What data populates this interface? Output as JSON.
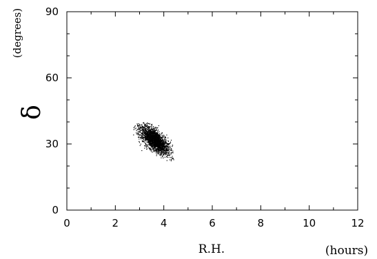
{
  "chart_data": {
    "type": "scatter",
    "xlabel": "R.H.",
    "xunit": "(hours)",
    "ylabel": "δ",
    "yunit": "(degrees)",
    "xlim": [
      0,
      12
    ],
    "ylim": [
      0,
      90
    ],
    "xticks": [
      "0",
      "2",
      "4",
      "6",
      "8",
      "10",
      "12"
    ],
    "yticks": [
      "0",
      "30",
      "60",
      "90"
    ],
    "grid": false,
    "point_color": "#000000",
    "cluster": {
      "center": [
        3.6,
        32
      ],
      "x_extent": [
        2.7,
        4.4
      ],
      "y_extent": [
        22,
        40
      ]
    }
  }
}
